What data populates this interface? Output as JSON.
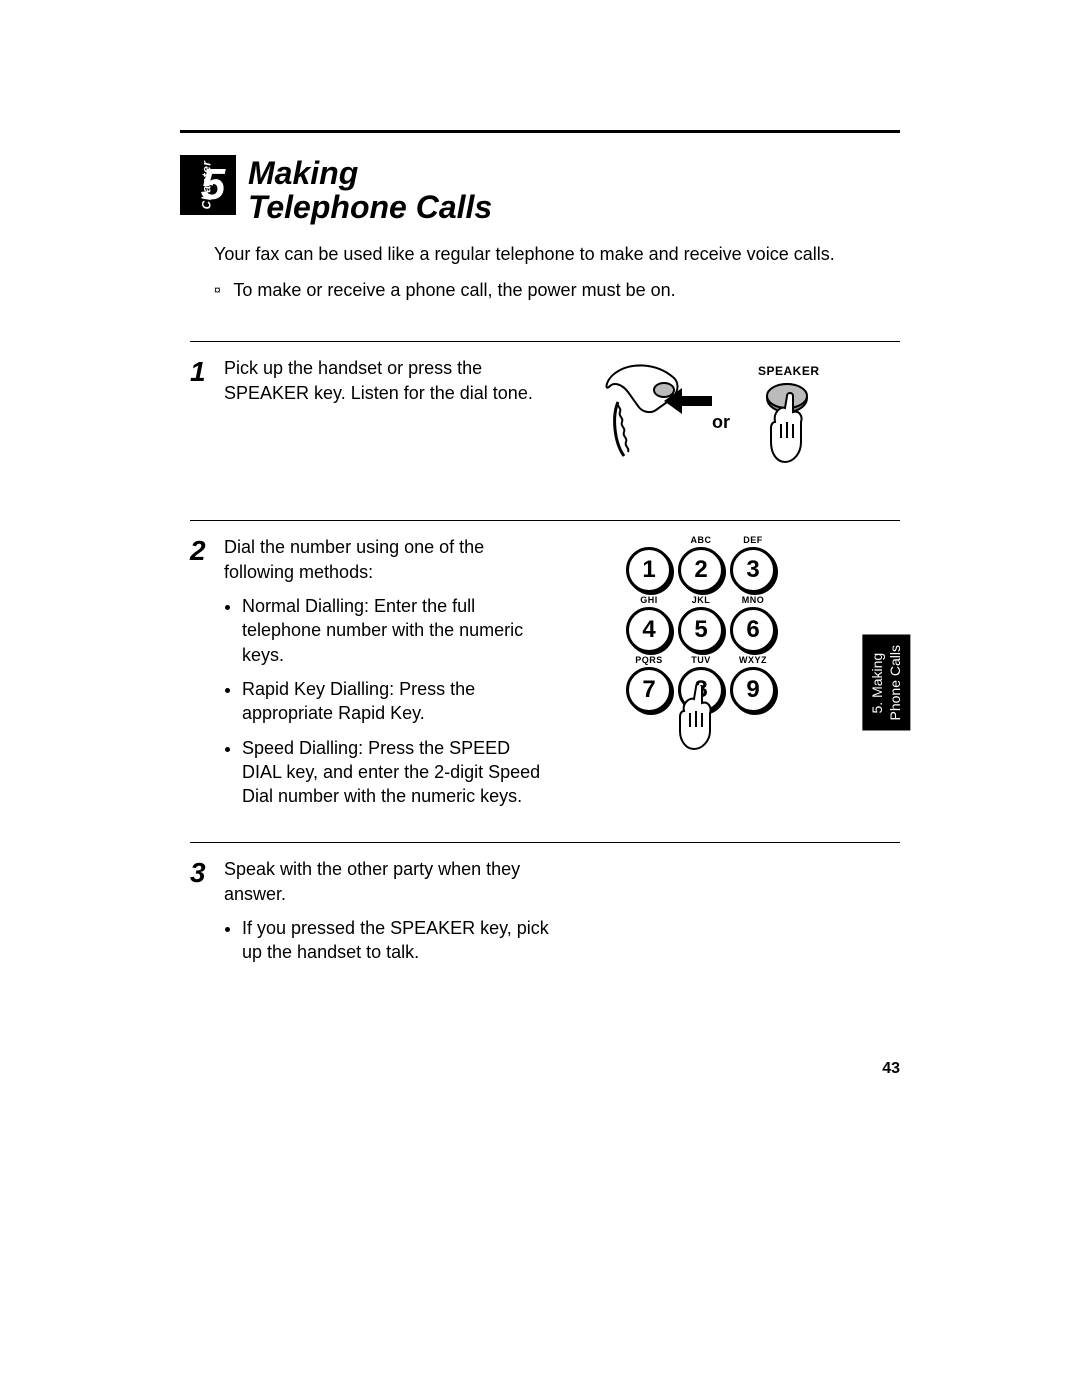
{
  "chapter": {
    "label": "Chapter",
    "number": "5",
    "title_line1": "Making",
    "title_line2": "Telephone Calls"
  },
  "intro": "Your fax can be used like a regular telephone to make and receive voice calls.",
  "note_bullet": "¤",
  "note": "To make or receive a phone call, the power must be on.",
  "steps": {
    "s1": {
      "num": "1",
      "text": "Pick up the handset or press the SPEAKER key. Listen for the dial tone.",
      "or_label": "or",
      "speaker_label": "SPEAKER"
    },
    "s2": {
      "num": "2",
      "text": "Dial the number using one of the following methods:",
      "bullets": {
        "b1": "Normal Dialling:  Enter the full telephone number with the numeric keys.",
        "b2": "Rapid Key Dialling: Press the appropriate Rapid Key.",
        "b3": "Speed Dialling: Press the SPEED DIAL  key, and enter the 2-digit Speed Dial number with the numeric keys."
      },
      "keypad": {
        "labels": {
          "l1": "",
          "l2": "ABC",
          "l3": "DEF",
          "l4": "GHI",
          "l5": "JKL",
          "l6": "MNO",
          "l7": "PQRS",
          "l8": "TUV",
          "l9": "WXYZ"
        },
        "keys": {
          "k1": "1",
          "k2": "2",
          "k3": "3",
          "k4": "4",
          "k5": "5",
          "k6": "6",
          "k7": "7",
          "k8": "8",
          "k9": "9"
        }
      }
    },
    "s3": {
      "num": "3",
      "text": "Speak with the other party when they answer.",
      "bullets": {
        "b1": "If you pressed the SPEAKER key, pick up the handset to talk."
      }
    }
  },
  "side_tab": "5. Making\nPhone Calls",
  "page_number": "43",
  "colors": {
    "fg": "#000000",
    "bg": "#ffffff"
  }
}
